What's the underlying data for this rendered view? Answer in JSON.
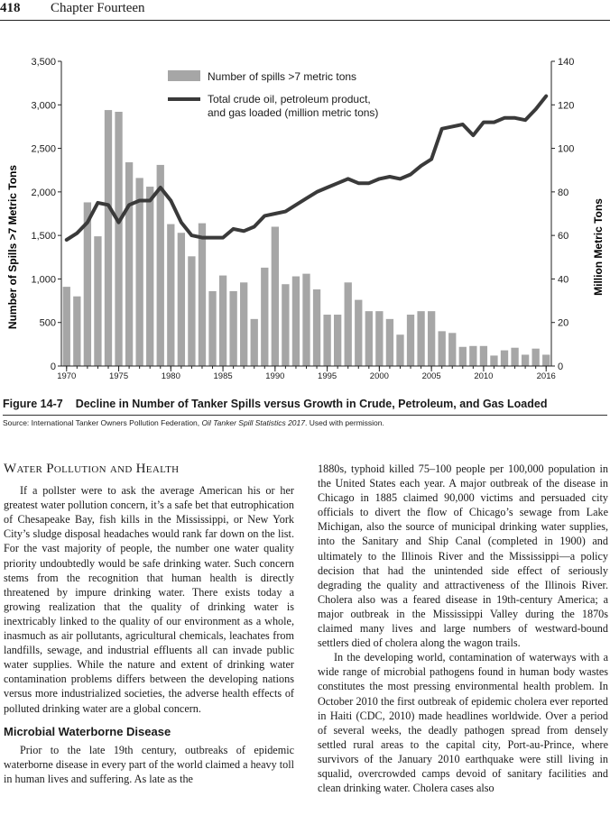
{
  "header": {
    "page_number": "418",
    "chapter": "Chapter Fourteen"
  },
  "figure": {
    "label": "Figure 14-7",
    "caption": "Decline in Number of Tanker Spills versus Growth in Crude, Petroleum, and Gas Loaded",
    "source_prefix": "Source: International Tanker Owners Pollution Federation, ",
    "source_title": "Oil Tanker Spill Statistics 2017",
    "source_suffix": ". Used with permission."
  },
  "chart_data": {
    "type": "bar+line",
    "ylabel_left": "Number of Spills >7 Metric Tons",
    "ylabel_right": "Million Metric Tons",
    "left_ylim": [
      0,
      3500
    ],
    "right_ylim": [
      0,
      140
    ],
    "left_ticks": [
      "0",
      "500",
      "1,000",
      "1,500",
      "2,000",
      "2,500",
      "3,000",
      "3,500"
    ],
    "right_ticks": [
      "0",
      "20",
      "40",
      "60",
      "80",
      "100",
      "120",
      "140"
    ],
    "x_ticks": [
      "1970",
      "1975",
      "1980",
      "1985",
      "1990",
      "1995",
      "2000",
      "2005",
      "2010",
      "2016"
    ],
    "legend": {
      "bars": "Number of spills >7 metric tons",
      "line_1": "Total crude oil, petroleum product,",
      "line_2": "and gas loaded (million metric tons)"
    },
    "bar_color": "#a6a6a6",
    "line_color": "#3a3a3a",
    "years": [
      1970,
      1971,
      1972,
      1973,
      1974,
      1975,
      1976,
      1977,
      1978,
      1979,
      1980,
      1981,
      1982,
      1983,
      1984,
      1985,
      1986,
      1987,
      1988,
      1989,
      1990,
      1991,
      1992,
      1993,
      1994,
      1995,
      1996,
      1997,
      1998,
      1999,
      2000,
      2001,
      2002,
      2003,
      2004,
      2005,
      2006,
      2007,
      2008,
      2009,
      2010,
      2011,
      2012,
      2013,
      2014,
      2015,
      2016
    ],
    "spills": [
      910,
      800,
      1880,
      1490,
      2940,
      2920,
      2340,
      2160,
      2060,
      2310,
      1630,
      1530,
      1260,
      1640,
      860,
      1040,
      860,
      960,
      540,
      1130,
      1600,
      940,
      1030,
      1060,
      880,
      590,
      590,
      960,
      760,
      630,
      630,
      540,
      360,
      590,
      630,
      630,
      400,
      380,
      220,
      230,
      230,
      120,
      180,
      210,
      130,
      200,
      130
    ],
    "loaded": [
      58,
      61,
      66,
      75,
      74,
      66,
      74,
      76,
      76,
      82,
      76,
      66,
      60,
      59,
      59,
      59,
      63,
      62,
      64,
      69,
      70,
      71,
      74,
      77,
      80,
      82,
      84,
      86,
      84,
      84,
      86,
      87,
      86,
      88,
      92,
      95,
      109,
      110,
      111,
      106,
      112,
      112,
      114,
      114,
      113,
      118,
      124
    ]
  },
  "section": {
    "title": "Water Pollution and Health",
    "intro": "If a pollster were to ask the average American his or her greatest water pollution concern, it’s a safe bet that eutrophication of Chesapeake Bay, fish kills in the Mississippi, or New York City’s sludge disposal headaches would rank far down on the list. For the vast majority of people, the number one water quality priority undoubtedly would be safe drinking water. Such concern stems from the recognition that human health is directly threatened by impure drinking water. There exists today a growing realization that the quality of drinking water is inextricably linked to the quality of our environment as a whole, inasmuch as air pollutants, agricultural chemicals, leachates from landfills, sewage, and industrial effluents all can invade public water supplies. While the nature and extent of drinking water contamination problems differs between the developing nations versus more industrialized societies, the adverse health effects of polluted drinking water are a global concern.",
    "subhead": "Microbial Waterborne Disease",
    "sub_para": "Prior to the late 19th century, outbreaks of epidemic waterborne disease in every part of the world claimed a heavy toll in human lives and suffering. As late as the",
    "right_para_1": "1880s, typhoid killed 75–100 people per 100,000 population in the United States each year. A major outbreak of the disease in Chicago in 1885 claimed 90,000 victims and persuaded city officials to divert the flow of Chicago’s sewage from Lake Michigan, also the source of municipal drinking water supplies, into the Sanitary and Ship Canal (completed in 1900) and ultimately to the Illinois River and the Mississippi—a policy decision that had the unintended side effect of seriously degrading the quality and attractiveness of the Illinois River. Cholera also was a feared disease in 19th-century America; a major outbreak in the Mississippi Valley during the 1870s claimed many lives and large numbers of westward-bound settlers died of cholera along the wagon trails.",
    "right_para_2": "In the developing world, contamination of waterways with a wide range of microbial pathogens found in human body wastes constitutes the most pressing environmental health problem. In October 2010 the first outbreak of epidemic cholera ever reported in Haiti (CDC, 2010) made headlines worldwide. Over a period of several weeks, the deadly pathogen spread from densely settled rural areas to the capital city, Port-au-Prince, where survivors of the January 2010 earthquake were still living in squalid, overcrowded camps devoid of sanitary facilities and clean drinking water. Cholera cases also"
  }
}
